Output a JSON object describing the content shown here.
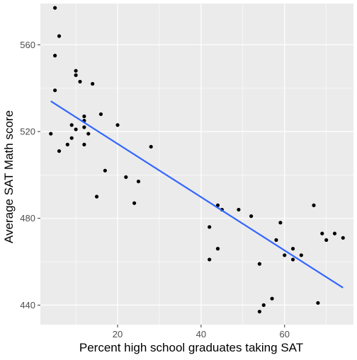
{
  "chart_data": {
    "type": "scatter",
    "xlabel": "Percent high school graduates taking SAT",
    "ylabel": "Average SAT Math score",
    "xlim": [
      1.5,
      76.5
    ],
    "ylim": [
      431,
      579
    ],
    "x_ticks": [
      20,
      40,
      60
    ],
    "y_ticks": [
      440,
      480,
      520,
      560
    ],
    "x_tick_labels": [
      "20",
      "40",
      "60"
    ],
    "y_tick_labels": [
      "440",
      "480",
      "520",
      "560"
    ],
    "grid": true,
    "panel_background": "#ebebeb",
    "grid_color": "#ffffff",
    "point_color": "#000000",
    "line_color": "#3366ff",
    "points": [
      {
        "x": 5,
        "y": 577
      },
      {
        "x": 6,
        "y": 564
      },
      {
        "x": 5,
        "y": 555
      },
      {
        "x": 5,
        "y": 539
      },
      {
        "x": 4,
        "y": 519
      },
      {
        "x": 6,
        "y": 511
      },
      {
        "x": 8,
        "y": 514
      },
      {
        "x": 9,
        "y": 517
      },
      {
        "x": 9,
        "y": 523
      },
      {
        "x": 10,
        "y": 548
      },
      {
        "x": 10,
        "y": 546
      },
      {
        "x": 10,
        "y": 521
      },
      {
        "x": 11,
        "y": 543
      },
      {
        "x": 12,
        "y": 527
      },
      {
        "x": 12,
        "y": 525
      },
      {
        "x": 12,
        "y": 522
      },
      {
        "x": 12,
        "y": 514
      },
      {
        "x": 13,
        "y": 519
      },
      {
        "x": 14,
        "y": 542
      },
      {
        "x": 15,
        "y": 490
      },
      {
        "x": 16,
        "y": 528
      },
      {
        "x": 17,
        "y": 502
      },
      {
        "x": 20,
        "y": 523
      },
      {
        "x": 22,
        "y": 499
      },
      {
        "x": 24,
        "y": 487
      },
      {
        "x": 25,
        "y": 497
      },
      {
        "x": 28,
        "y": 513
      },
      {
        "x": 42,
        "y": 476
      },
      {
        "x": 42,
        "y": 461
      },
      {
        "x": 44,
        "y": 486
      },
      {
        "x": 44,
        "y": 466
      },
      {
        "x": 45,
        "y": 484
      },
      {
        "x": 49,
        "y": 484
      },
      {
        "x": 52,
        "y": 481
      },
      {
        "x": 54,
        "y": 459
      },
      {
        "x": 54,
        "y": 437
      },
      {
        "x": 55,
        "y": 440
      },
      {
        "x": 57,
        "y": 443
      },
      {
        "x": 58,
        "y": 470
      },
      {
        "x": 59,
        "y": 478
      },
      {
        "x": 60,
        "y": 463
      },
      {
        "x": 62,
        "y": 466
      },
      {
        "x": 62,
        "y": 461
      },
      {
        "x": 64,
        "y": 463
      },
      {
        "x": 67,
        "y": 486
      },
      {
        "x": 68,
        "y": 441
      },
      {
        "x": 69,
        "y": 473
      },
      {
        "x": 70,
        "y": 470
      },
      {
        "x": 72,
        "y": 473
      },
      {
        "x": 74,
        "y": 471
      }
    ],
    "fit_line": {
      "x": [
        4,
        74
      ],
      "y": [
        534,
        448
      ]
    }
  }
}
